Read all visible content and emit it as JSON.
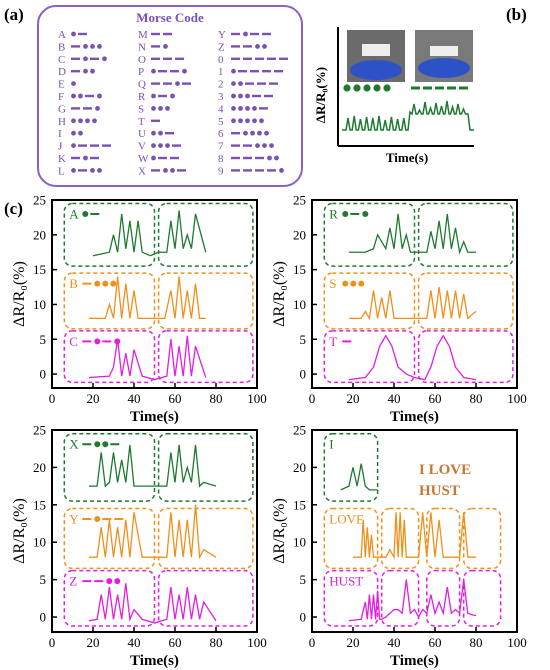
{
  "panel_labels": {
    "a": "(a)",
    "b": "(b)",
    "c": "(c)"
  },
  "morse": {
    "title": "Morse Code",
    "columns": [
      [
        [
          "A",
          "•—"
        ],
        [
          "B",
          "—•••"
        ],
        [
          "C",
          "—•—•"
        ],
        [
          "D",
          "—••"
        ],
        [
          "E",
          "•"
        ],
        [
          "F",
          "••—•"
        ],
        [
          "G",
          "——•"
        ],
        [
          "H",
          "••••"
        ],
        [
          "I",
          "••"
        ],
        [
          "J",
          "•———"
        ],
        [
          "K",
          "—•—"
        ],
        [
          "L",
          "•—••"
        ]
      ],
      [
        [
          "M",
          "——"
        ],
        [
          "N",
          "—•"
        ],
        [
          "O",
          "———"
        ],
        [
          "P",
          "•——•"
        ],
        [
          "Q",
          "——•—"
        ],
        [
          "R",
          "•—•"
        ],
        [
          "S",
          "•••"
        ],
        [
          "T",
          "—"
        ],
        [
          "U",
          "••—"
        ],
        [
          "V",
          "•••—"
        ],
        [
          "W",
          "•——"
        ],
        [
          "X",
          "—••—"
        ]
      ],
      [
        [
          "Y",
          "—•——"
        ],
        [
          "Z",
          "——••"
        ],
        [
          "0",
          "—————"
        ],
        [
          "1",
          "•————"
        ],
        [
          "2",
          "••———"
        ],
        [
          "3",
          "•••——"
        ],
        [
          "4",
          "••••—"
        ],
        [
          "5",
          "•••••"
        ],
        [
          "6",
          "—••••"
        ],
        [
          "7",
          "——•••"
        ],
        [
          "8",
          "———••"
        ],
        [
          "9",
          "————•"
        ]
      ]
    ]
  },
  "panel_b": {
    "ylabel": "ΔR/R₀(%)",
    "xlabel": "Time(s)",
    "dots_count": 5,
    "dashes_count": 5
  },
  "colors": {
    "green": "#1e7a2f",
    "orange": "#f0901a",
    "magenta": "#e21ee0",
    "purple": "#7a52b3",
    "title_orange": "#c8772f"
  },
  "common_axes": {
    "xlabel": "Time(s)",
    "ylabel": "ΔR/R₀(%)",
    "xticks": [
      "0",
      "20",
      "40",
      "60",
      "80",
      "100"
    ],
    "yticks": [
      "0",
      "5",
      "10",
      "15",
      "20",
      "25"
    ],
    "xlim": [
      0,
      100
    ],
    "ylim": [
      -2,
      25
    ]
  },
  "panel_c_subplots": [
    {
      "labels": [
        "A",
        "B",
        "C"
      ]
    },
    {
      "labels": [
        "R",
        "S",
        "T"
      ]
    },
    {
      "labels": [
        "X",
        "Y",
        "Z"
      ]
    },
    {
      "labels": [
        "I",
        "LOVE",
        "HUST"
      ],
      "annotation": [
        "I LOVE",
        "HUST"
      ]
    }
  ],
  "chart_data": [
    {
      "type": "line",
      "title": "",
      "xlabel": "Time(s)",
      "ylabel": "ΔR/R₀(%)",
      "xlim": [
        0,
        100
      ],
      "ylim": [
        -2,
        25
      ],
      "series": [
        {
          "name": "A",
          "x": [
            20,
            28,
            30,
            32,
            34,
            36,
            38,
            40,
            42,
            44,
            48,
            52,
            56,
            58,
            60,
            62,
            64,
            66,
            68,
            70,
            75
          ],
          "y": [
            17,
            17.5,
            20,
            17.5,
            23,
            18,
            22,
            17.5,
            22,
            17.5,
            17,
            17.5,
            17.5,
            22,
            18,
            23.5,
            18,
            20,
            18,
            23,
            17.5
          ]
        },
        {
          "name": "B",
          "x": [
            18,
            26,
            28,
            30,
            32,
            34,
            36,
            38,
            40,
            42,
            44,
            50,
            55,
            58,
            60,
            62,
            64,
            66,
            68,
            70,
            72,
            75
          ],
          "y": [
            8,
            8,
            10,
            8,
            14,
            8,
            13,
            8,
            12,
            8,
            8,
            8,
            8,
            12,
            8,
            14,
            8,
            12,
            8,
            13,
            8,
            8
          ]
        },
        {
          "name": "C",
          "x": [
            18,
            28,
            30,
            32,
            34,
            36,
            38,
            40,
            44,
            50,
            56,
            58,
            60,
            62,
            64,
            66,
            68,
            70,
            75
          ],
          "y": [
            -0.5,
            -0.3,
            1,
            5,
            -0.3,
            3,
            -0.3,
            3.5,
            -0.3,
            -0.8,
            -0.3,
            5,
            -0.3,
            4,
            -0.3,
            5.5,
            -0.3,
            4,
            -0.5
          ]
        }
      ]
    },
    {
      "type": "line",
      "title": "",
      "xlabel": "Time(s)",
      "ylabel": "ΔR/R₀(%)",
      "xlim": [
        0,
        100
      ],
      "ylim": [
        -2,
        25
      ],
      "series": [
        {
          "name": "R",
          "x": [
            18,
            26,
            30,
            32,
            36,
            38,
            40,
            42,
            44,
            46,
            48,
            52,
            56,
            58,
            60,
            62,
            64,
            66,
            68,
            70,
            72,
            74,
            76,
            80
          ],
          "y": [
            17.5,
            17.5,
            18,
            20,
            18,
            21,
            18,
            23,
            18,
            20,
            17.5,
            17.5,
            17.5,
            20.5,
            18,
            22,
            18,
            23,
            18,
            21,
            17.5,
            19,
            17.5,
            17.5
          ]
        },
        {
          "name": "S",
          "x": [
            18,
            24,
            26,
            28,
            30,
            32,
            34,
            36,
            38,
            40,
            44,
            50,
            56,
            58,
            60,
            62,
            64,
            66,
            68,
            70,
            72,
            74,
            76,
            80
          ],
          "y": [
            8,
            8,
            9,
            8,
            12,
            8,
            11,
            8,
            12,
            8,
            8,
            8,
            8,
            12,
            8,
            12.5,
            8,
            12,
            8,
            12,
            8,
            11.5,
            8,
            9
          ]
        },
        {
          "name": "T",
          "x": [
            18,
            26,
            30,
            33,
            36,
            39,
            42,
            46,
            50,
            55,
            58,
            61,
            64,
            67,
            70,
            74,
            80
          ],
          "y": [
            -0.8,
            -0.5,
            1,
            4,
            5.5,
            4,
            1,
            0,
            -0.5,
            -0.8,
            1,
            4,
            5.5,
            4,
            1,
            -0.5,
            -0.8
          ]
        }
      ]
    },
    {
      "type": "line",
      "title": "",
      "xlabel": "Time(s)",
      "ylabel": "ΔR/R₀(%)",
      "xlim": [
        0,
        100
      ],
      "ylim": [
        -2,
        25
      ],
      "series": [
        {
          "name": "X",
          "x": [
            18,
            22,
            24,
            26,
            28,
            30,
            32,
            34,
            36,
            38,
            40,
            44,
            50,
            56,
            58,
            60,
            62,
            64,
            66,
            68,
            70,
            72,
            74,
            80
          ],
          "y": [
            17.5,
            17.5,
            22,
            17.5,
            18,
            22,
            18,
            21,
            18,
            23,
            17.5,
            17.5,
            17.5,
            17.5,
            22,
            18,
            23,
            18,
            20,
            18,
            23,
            17.5,
            18,
            17.5
          ]
        },
        {
          "name": "Y",
          "x": [
            18,
            22,
            24,
            26,
            28,
            30,
            32,
            34,
            36,
            38,
            40,
            44,
            50,
            56,
            58,
            60,
            62,
            64,
            66,
            68,
            70,
            72,
            74,
            80
          ],
          "y": [
            8,
            8,
            12,
            8,
            13,
            8,
            12,
            8,
            13,
            8,
            14,
            8,
            8,
            8,
            14,
            8,
            13,
            8,
            13,
            8,
            15,
            8,
            9,
            8
          ]
        },
        {
          "name": "Z",
          "x": [
            18,
            22,
            24,
            26,
            28,
            30,
            32,
            34,
            36,
            38,
            40,
            44,
            50,
            56,
            58,
            60,
            62,
            64,
            66,
            68,
            70,
            72,
            74,
            80
          ],
          "y": [
            -0.5,
            -0.3,
            3,
            -0.3,
            4,
            -0.3,
            3,
            -0.3,
            4.5,
            -0.3,
            1,
            -0.3,
            -0.8,
            -0.3,
            4,
            -0.3,
            3,
            -0.3,
            4,
            -0.3,
            3,
            -0.3,
            2,
            -0.5
          ]
        }
      ]
    },
    {
      "type": "line",
      "title": "",
      "xlabel": "Time(s)",
      "ylabel": "ΔR/R₀(%)",
      "xlim": [
        0,
        100
      ],
      "ylim": [
        -2,
        25
      ],
      "series": [
        {
          "name": "I",
          "x": [
            14,
            18,
            20,
            22,
            24,
            26,
            28,
            32
          ],
          "y": [
            17,
            17.5,
            20,
            17.5,
            20.5,
            17.5,
            17,
            17
          ]
        },
        {
          "name": "LOVE",
          "x": [
            20,
            24,
            25,
            26,
            27,
            28,
            29,
            30,
            32,
            36,
            38,
            40,
            41,
            42,
            43,
            44,
            45,
            46,
            48,
            52,
            54,
            56,
            58,
            60,
            62,
            64,
            66,
            68,
            72,
            74,
            76,
            78,
            80
          ],
          "y": [
            8,
            8,
            13,
            8,
            12,
            8,
            11,
            8,
            8,
            8,
            9,
            8,
            14,
            8,
            14,
            8,
            13,
            8,
            8,
            8,
            14,
            8,
            14,
            8,
            13,
            8,
            8,
            8,
            8,
            14,
            8,
            8,
            8
          ]
        },
        {
          "name": "HUST",
          "x": [
            18,
            24,
            26,
            27,
            28,
            29,
            30,
            31,
            32,
            33,
            34,
            36,
            38,
            40,
            42,
            44,
            46,
            48,
            50,
            52,
            54,
            56,
            58,
            60,
            62,
            64,
            66,
            68,
            70,
            72,
            74,
            76,
            78,
            80
          ],
          "y": [
            -0.5,
            -0.3,
            2,
            -0.3,
            3,
            -0.3,
            3,
            -0.3,
            3.5,
            -0.3,
            -0.3,
            0,
            0.5,
            1,
            1,
            0.5,
            5,
            0.5,
            1,
            0,
            1,
            0.5,
            3,
            0.5,
            2,
            0.5,
            4,
            0.5,
            1,
            0.5,
            5,
            0.5,
            0.3,
            0.2
          ]
        }
      ]
    }
  ]
}
